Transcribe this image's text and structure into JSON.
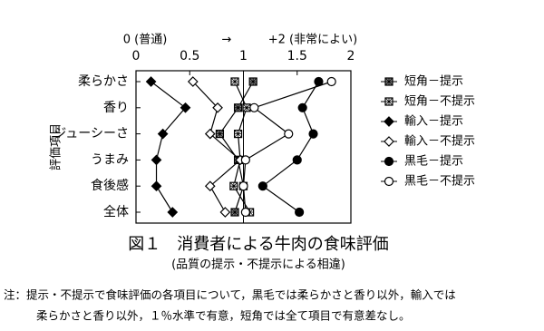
{
  "chart_data": {
    "type": "line",
    "axis_label_left": "0 (普通)",
    "axis_arrow": "→",
    "axis_label_right": "+2 (非常によい)",
    "ylabel": "評価項目",
    "categories": [
      "柔らかさ",
      "香り",
      "ジューシーさ",
      "うまみ",
      "食後感",
      "全体"
    ],
    "xlim": [
      0,
      2
    ],
    "xticks": [
      0,
      0.5,
      1,
      1.5,
      2
    ],
    "reference_line": 1,
    "series": [
      {
        "name": "短角－提示",
        "marker": "square-cross-filled",
        "color": "#000000",
        "values": [
          1.09,
          0.95,
          0.78,
          0.95,
          1.0,
          0.92
        ]
      },
      {
        "name": "短角－不提示",
        "marker": "square-cross-open",
        "color": "#000000",
        "values": [
          0.92,
          1.03,
          0.95,
          0.97,
          0.91,
          1.06
        ]
      },
      {
        "name": "輸入－提示",
        "marker": "diamond-filled",
        "color": "#000000",
        "values": [
          0.14,
          0.46,
          0.25,
          0.19,
          0.19,
          0.34
        ]
      },
      {
        "name": "輸入－不提示",
        "marker": "diamond-open",
        "color": "#000000",
        "values": [
          0.53,
          0.76,
          0.69,
          0.97,
          0.69,
          0.83
        ]
      },
      {
        "name": "黒毛－提示",
        "marker": "circle-filled",
        "color": "#000000",
        "values": [
          1.7,
          1.55,
          1.65,
          1.5,
          1.18,
          1.52
        ]
      },
      {
        "name": "黒毛－不提示",
        "marker": "circle-open",
        "color": "#000000",
        "values": [
          1.82,
          1.1,
          1.42,
          1.02,
          1.0,
          1.02
        ]
      }
    ],
    "title": "図１　消費者による牛肉の食味評価",
    "subtitle": "(品質の提示・不提示による相違)",
    "note": [
      "注：提示・不提示で食味評価の各項目について，黒毛では柔らかさと香り以外，輸入では",
      "柔らかさと香り以外，１％水準で有意，短角では全て項目で有意差なし。"
    ]
  }
}
